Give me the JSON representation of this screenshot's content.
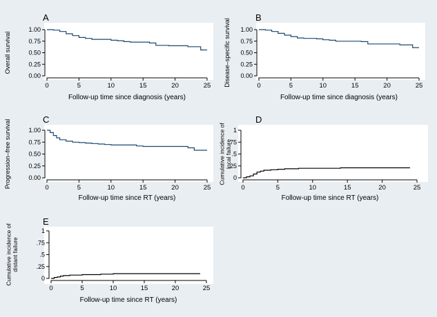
{
  "colors": {
    "background": "#e9eef2",
    "plot_bg": "#ffffff",
    "km_curve": "#1a476f",
    "ci_curve": "#000000",
    "axis": "#000000"
  },
  "chart_data": [
    {
      "id": "A",
      "panel": "A",
      "type": "line",
      "kind": "survival",
      "xlabel": "Follow-up time since diagnosis (years)",
      "ylabel": "Overall survival",
      "xlim": [
        0,
        25
      ],
      "ylim": [
        0,
        1
      ],
      "xticks": [
        0,
        5,
        10,
        15,
        20,
        25
      ],
      "yticks": [
        0,
        0.25,
        0.5,
        0.75,
        1
      ],
      "ytick_labels": [
        "0.00",
        "0.25",
        "0.50",
        "0.75",
        "1.00"
      ],
      "series": [
        {
          "name": "Overall survival",
          "x": [
            0,
            1,
            2,
            3,
            4,
            5,
            6,
            7,
            8,
            9,
            10,
            11,
            12,
            13,
            14,
            15,
            16,
            17,
            18,
            19,
            20,
            21,
            22,
            23,
            24,
            25
          ],
          "y": [
            1.0,
            0.99,
            0.96,
            0.91,
            0.87,
            0.83,
            0.81,
            0.79,
            0.79,
            0.79,
            0.77,
            0.76,
            0.74,
            0.73,
            0.73,
            0.73,
            0.71,
            0.66,
            0.66,
            0.65,
            0.65,
            0.65,
            0.63,
            0.63,
            0.56,
            0.56
          ]
        }
      ]
    },
    {
      "id": "B",
      "panel": "B",
      "type": "line",
      "kind": "survival",
      "xlabel": "Follow-up time since diagnosis (years)",
      "ylabel": "Disease–specific survival",
      "xlim": [
        0,
        25
      ],
      "ylim": [
        0,
        1
      ],
      "xticks": [
        0,
        5,
        10,
        15,
        20,
        25
      ],
      "yticks": [
        0,
        0.25,
        0.5,
        0.75,
        1
      ],
      "ytick_labels": [
        "0.00",
        "0.25",
        "0.50",
        "0.75",
        "1.00"
      ],
      "series": [
        {
          "name": "Disease-specific survival",
          "x": [
            0,
            1,
            2,
            3,
            4,
            5,
            6,
            7,
            8,
            9,
            10,
            11,
            12,
            13,
            14,
            15,
            16,
            17,
            18,
            19,
            20,
            21,
            22,
            23,
            24,
            25
          ],
          "y": [
            1.0,
            0.99,
            0.96,
            0.92,
            0.88,
            0.85,
            0.82,
            0.81,
            0.81,
            0.8,
            0.78,
            0.77,
            0.75,
            0.75,
            0.75,
            0.75,
            0.74,
            0.69,
            0.69,
            0.69,
            0.69,
            0.69,
            0.67,
            0.67,
            0.61,
            0.61
          ]
        }
      ]
    },
    {
      "id": "C",
      "panel": "C",
      "type": "line",
      "kind": "survival",
      "xlabel": "Follow-up time since RT (years)",
      "ylabel": "Progression–free survival",
      "xlim": [
        0,
        25
      ],
      "ylim": [
        0,
        1
      ],
      "xticks": [
        0,
        5,
        10,
        15,
        20,
        25
      ],
      "yticks": [
        0,
        0.25,
        0.5,
        0.75,
        1
      ],
      "ytick_labels": [
        "0.00",
        "0.25",
        "0.50",
        "0.75",
        "1.00"
      ],
      "series": [
        {
          "name": "Progression-free survival",
          "x": [
            0,
            0.5,
            1,
            1.5,
            2,
            3,
            4,
            5,
            6,
            7,
            8,
            9,
            10,
            11,
            12,
            13,
            14,
            15,
            16,
            17,
            18,
            19,
            20,
            21,
            22,
            23,
            24,
            25
          ],
          "y": [
            1.0,
            0.95,
            0.89,
            0.84,
            0.8,
            0.77,
            0.75,
            0.74,
            0.73,
            0.72,
            0.71,
            0.7,
            0.69,
            0.69,
            0.69,
            0.69,
            0.67,
            0.66,
            0.66,
            0.66,
            0.66,
            0.66,
            0.66,
            0.66,
            0.63,
            0.58,
            0.58,
            0.58
          ]
        }
      ]
    },
    {
      "id": "D",
      "panel": "D",
      "type": "line",
      "kind": "incidence",
      "xlabel": "Follow-up time since RT (years)",
      "ylabel": "Cumulative incidence of local failure",
      "ylabel_lines": [
        "Cumulative incidence of",
        "local failure"
      ],
      "xlim": [
        0,
        25
      ],
      "ylim": [
        0,
        1
      ],
      "xticks": [
        0,
        5,
        10,
        15,
        20,
        25
      ],
      "yticks": [
        0,
        0.25,
        0.5,
        0.75,
        1
      ],
      "ytick_labels": [
        "0",
        ".25",
        ".5",
        ".75",
        "1"
      ],
      "series": [
        {
          "name": "Local failure",
          "x": [
            0,
            0.5,
            1,
            1.5,
            2,
            2.5,
            3,
            4,
            5,
            6,
            7,
            8,
            9,
            10,
            11,
            12,
            13,
            14,
            15,
            16,
            17,
            18,
            19,
            20,
            21,
            22,
            23,
            24
          ],
          "y": [
            0,
            0.02,
            0.04,
            0.08,
            0.12,
            0.14,
            0.16,
            0.17,
            0.18,
            0.19,
            0.19,
            0.2,
            0.2,
            0.2,
            0.2,
            0.2,
            0.2,
            0.21,
            0.21,
            0.21,
            0.21,
            0.21,
            0.21,
            0.21,
            0.21,
            0.21,
            0.21,
            0.21
          ]
        }
      ]
    },
    {
      "id": "E",
      "panel": "E",
      "type": "line",
      "kind": "incidence",
      "xlabel": "Follow-up time since RT (years)",
      "ylabel": "Cumulative incidence of distant failure",
      "ylabel_lines": [
        "Cumulative incidence of",
        "distant failure"
      ],
      "xlim": [
        0,
        25
      ],
      "ylim": [
        0,
        1
      ],
      "xticks": [
        0,
        5,
        10,
        15,
        20,
        25
      ],
      "yticks": [
        0,
        0.25,
        0.5,
        0.75,
        1
      ],
      "ytick_labels": [
        "0",
        ".25",
        ".5",
        ".75",
        "1"
      ],
      "series": [
        {
          "name": "Distant failure",
          "x": [
            0,
            0.5,
            1,
            1.5,
            2,
            3,
            4,
            5,
            6,
            7,
            8,
            9,
            10,
            11,
            12,
            13,
            14,
            15,
            16,
            17,
            18,
            19,
            20,
            21,
            22,
            23,
            24
          ],
          "y": [
            0,
            0.02,
            0.03,
            0.05,
            0.06,
            0.07,
            0.07,
            0.08,
            0.08,
            0.08,
            0.09,
            0.09,
            0.1,
            0.1,
            0.1,
            0.1,
            0.1,
            0.1,
            0.1,
            0.1,
            0.1,
            0.1,
            0.1,
            0.1,
            0.1,
            0.1,
            0.1
          ]
        }
      ]
    }
  ]
}
